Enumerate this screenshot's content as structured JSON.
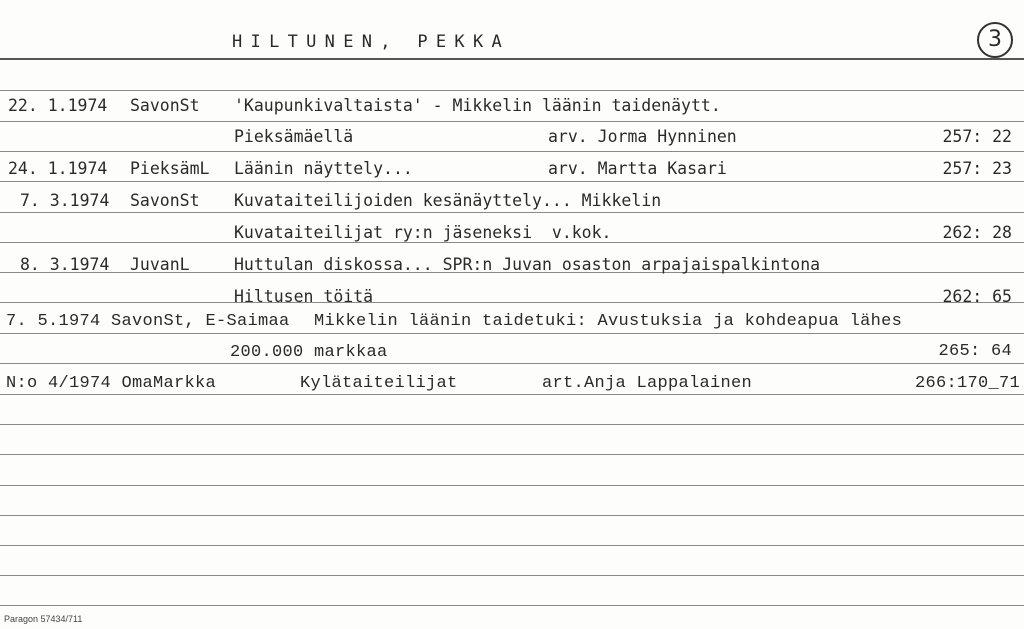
{
  "header": {
    "name": "HILTUNEN, PEKKA",
    "card_number": "3"
  },
  "entries": [
    {
      "date": "22. 1.1974",
      "source": "SavonSt",
      "text": "'Kaupunkivaltaista' - Mikkelin läänin taidenäytt."
    },
    {
      "text": "Pieksämäellä",
      "reviewer": "arv. Jorma Hynninen",
      "ref": "257: 22"
    },
    {
      "date": "24. 1.1974",
      "source": "PieksämL",
      "text": "Läänin näyttely...",
      "reviewer": "arv. Martta Kasari",
      "ref": "257: 23"
    },
    {
      "date": "7. 3.1974",
      "source": "SavonSt",
      "text": "Kuvataiteilijoiden kesänäyttely... Mikkelin"
    },
    {
      "text": "Kuvataiteilijat ry:n jäseneksi  v.kok.",
      "ref": "262: 28"
    },
    {
      "date": "8. 3.1974",
      "source": "JuvanL",
      "text": "Huttulan diskossa... SPR:n Juvan osaston arpajaispalkintona"
    },
    {
      "text": "Hiltusen töitä",
      "ref": "262: 65"
    },
    {
      "date_source": "7. 5.1974 SavonSt, E-Saimaa",
      "text": "Mikkelin läänin taidetuki: Avustuksia ja kohdeapua lähes"
    },
    {
      "text": "200.000 markkaa",
      "ref": "265: 64"
    },
    {
      "date_source": "N:o 4/1974 OmaMarkka",
      "text": "Kylätaiteilijat",
      "reviewer": "art.Anja Lappalainen",
      "ref": "266:170_71"
    }
  ],
  "footer": "Paragon 57434/711"
}
